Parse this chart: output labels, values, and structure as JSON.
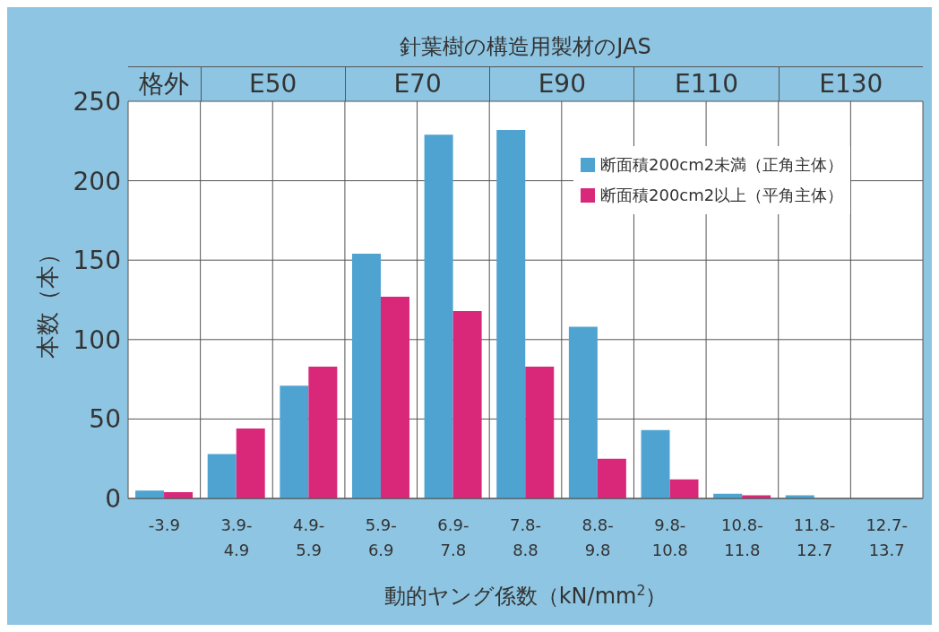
{
  "chart_data": {
    "type": "bar",
    "title": "針葉樹の構造用製材のJAS",
    "annotations": [
      "格外",
      "E50",
      "E70",
      "E90",
      "E110",
      "E130"
    ],
    "categories": [
      "-3.9",
      "3.9-4.9",
      "4.9-5.9",
      "5.9-6.9",
      "6.9-7.8",
      "7.8-8.8",
      "8.8-9.8",
      "9.8-10.8",
      "10.8-11.8",
      "11.8-12.7",
      "12.7-13.7"
    ],
    "series": [
      {
        "name": "断面積200cm2未満（正角主体）",
        "color": "#4fa3d1",
        "values": [
          5,
          28,
          71,
          154,
          229,
          232,
          108,
          43,
          3,
          2,
          0
        ]
      },
      {
        "name": "断面積200cm2以上（平角主体）",
        "color": "#d9287a",
        "values": [
          4,
          44,
          83,
          127,
          118,
          83,
          25,
          12,
          2,
          0,
          0
        ]
      }
    ],
    "xlabel": "動的ヤング係数（kN/mm$^{2}$）",
    "ylabel": "本数（本）",
    "ylim": [
      0,
      250
    ],
    "yticks": [
      0,
      50,
      100,
      150,
      200,
      250
    ],
    "grid": true,
    "legend": "top right"
  }
}
